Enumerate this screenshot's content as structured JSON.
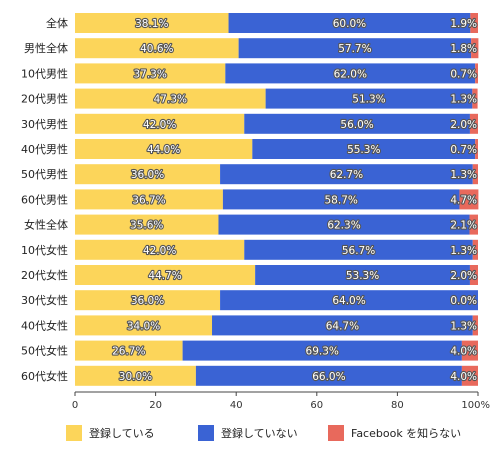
{
  "chart_data": {
    "type": "bar",
    "orientation": "horizontal",
    "stacked": true,
    "categories": [
      "全体",
      "男性全体",
      "10代男性",
      "20代男性",
      "30代男性",
      "40代男性",
      "50代男性",
      "60代男性",
      "女性全体",
      "10代女性",
      "20代女性",
      "30代女性",
      "40代女性",
      "50代女性",
      "60代女性"
    ],
    "series": [
      {
        "name": "登録している",
        "color": "#fcd55a",
        "values": [
          38.1,
          40.6,
          37.3,
          47.3,
          42.0,
          44.0,
          36.0,
          36.7,
          35.6,
          42.0,
          44.7,
          36.0,
          34.0,
          26.7,
          30.0
        ]
      },
      {
        "name": "登録していない",
        "color": "#3a63d4",
        "values": [
          60.0,
          57.7,
          62.0,
          51.3,
          56.0,
          55.3,
          62.7,
          58.7,
          62.3,
          56.7,
          53.3,
          64.0,
          64.7,
          69.3,
          66.0
        ]
      },
      {
        "name": "Facebook を知らない",
        "color": "#e8695c",
        "values": [
          1.9,
          1.8,
          0.7,
          1.3,
          2.0,
          0.7,
          1.3,
          4.7,
          2.1,
          1.3,
          2.0,
          0.0,
          1.3,
          4.0,
          4.0
        ]
      }
    ],
    "data_labels": [
      [
        "38.1%",
        "40.6%",
        "37.3%",
        "47.3%",
        "42.0%",
        "44.0%",
        "36.0%",
        "36.7%",
        "35.6%",
        "42.0%",
        "44.7%",
        "36.0%",
        "34.0%",
        "26.7%",
        "30.0%"
      ],
      [
        "60.0%",
        "57.7%",
        "62.0%",
        "51.3%",
        "56.0%",
        "55.3%",
        "62.7%",
        "58.7%",
        "62.3%",
        "56.7%",
        "53.3%",
        "64.0%",
        "64.7%",
        "69.3%",
        "66.0%"
      ],
      [
        "1.9%",
        "1.8%",
        "0.7%",
        "1.3%",
        "2.0%",
        "0.7%",
        "1.3%",
        "4.7%",
        "2.1%",
        "1.3%",
        "2.0%",
        "0.0%",
        "1.3%",
        "4.0%",
        "4.0%"
      ]
    ],
    "x_ticks": [
      "0",
      "20",
      "40",
      "60",
      "80",
      "100%"
    ],
    "xlim": [
      0,
      100
    ],
    "title": "",
    "xlabel": "",
    "ylabel": "",
    "grid": false,
    "legend_position": "bottom"
  }
}
